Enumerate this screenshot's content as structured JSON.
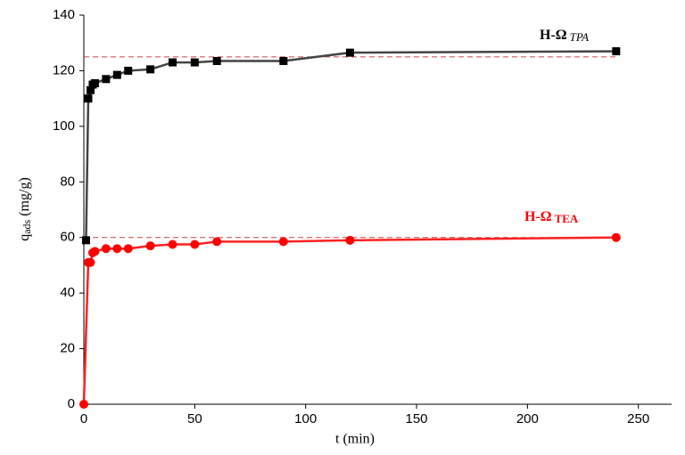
{
  "chart_data": {
    "type": "line",
    "xlabel": "t (min)",
    "ylabel": {
      "main": "q",
      "sub": "ads",
      "unit": "(mg/g)"
    },
    "xlim": [
      0,
      265
    ],
    "xticks": [
      0,
      50,
      100,
      150,
      200,
      250
    ],
    "ylim": [
      0,
      140
    ],
    "yticks": [
      0,
      20,
      40,
      60,
      80,
      100,
      120,
      140
    ],
    "series": [
      {
        "name": "H-Ω",
        "name_sub": "TPA",
        "color": "#000000",
        "line_color": "#444444",
        "marker": "square",
        "x": [
          1,
          2,
          3,
          4,
          5,
          10,
          15,
          20,
          30,
          40,
          50,
          60,
          90,
          120,
          240
        ],
        "values": [
          59,
          110,
          113,
          115,
          115.5,
          117,
          118.5,
          120,
          120.5,
          123,
          123,
          123.5,
          123.5,
          126.5,
          127
        ]
      },
      {
        "name": "H-Ω",
        "name_sub": "TEA",
        "color": "#ff0000",
        "line_color": "#ff2020",
        "marker": "circle",
        "x": [
          0,
          2,
          3,
          4,
          5,
          10,
          15,
          20,
          30,
          40,
          50,
          60,
          90,
          120,
          240
        ],
        "values": [
          0,
          51,
          51,
          54.5,
          55,
          56,
          56,
          56,
          57,
          57.5,
          57.5,
          58.5,
          58.5,
          59,
          60
        ]
      }
    ],
    "reference_lines": [
      {
        "value": 125,
        "color": "#d04040"
      },
      {
        "value": 60,
        "color": "#d04040"
      }
    ]
  }
}
